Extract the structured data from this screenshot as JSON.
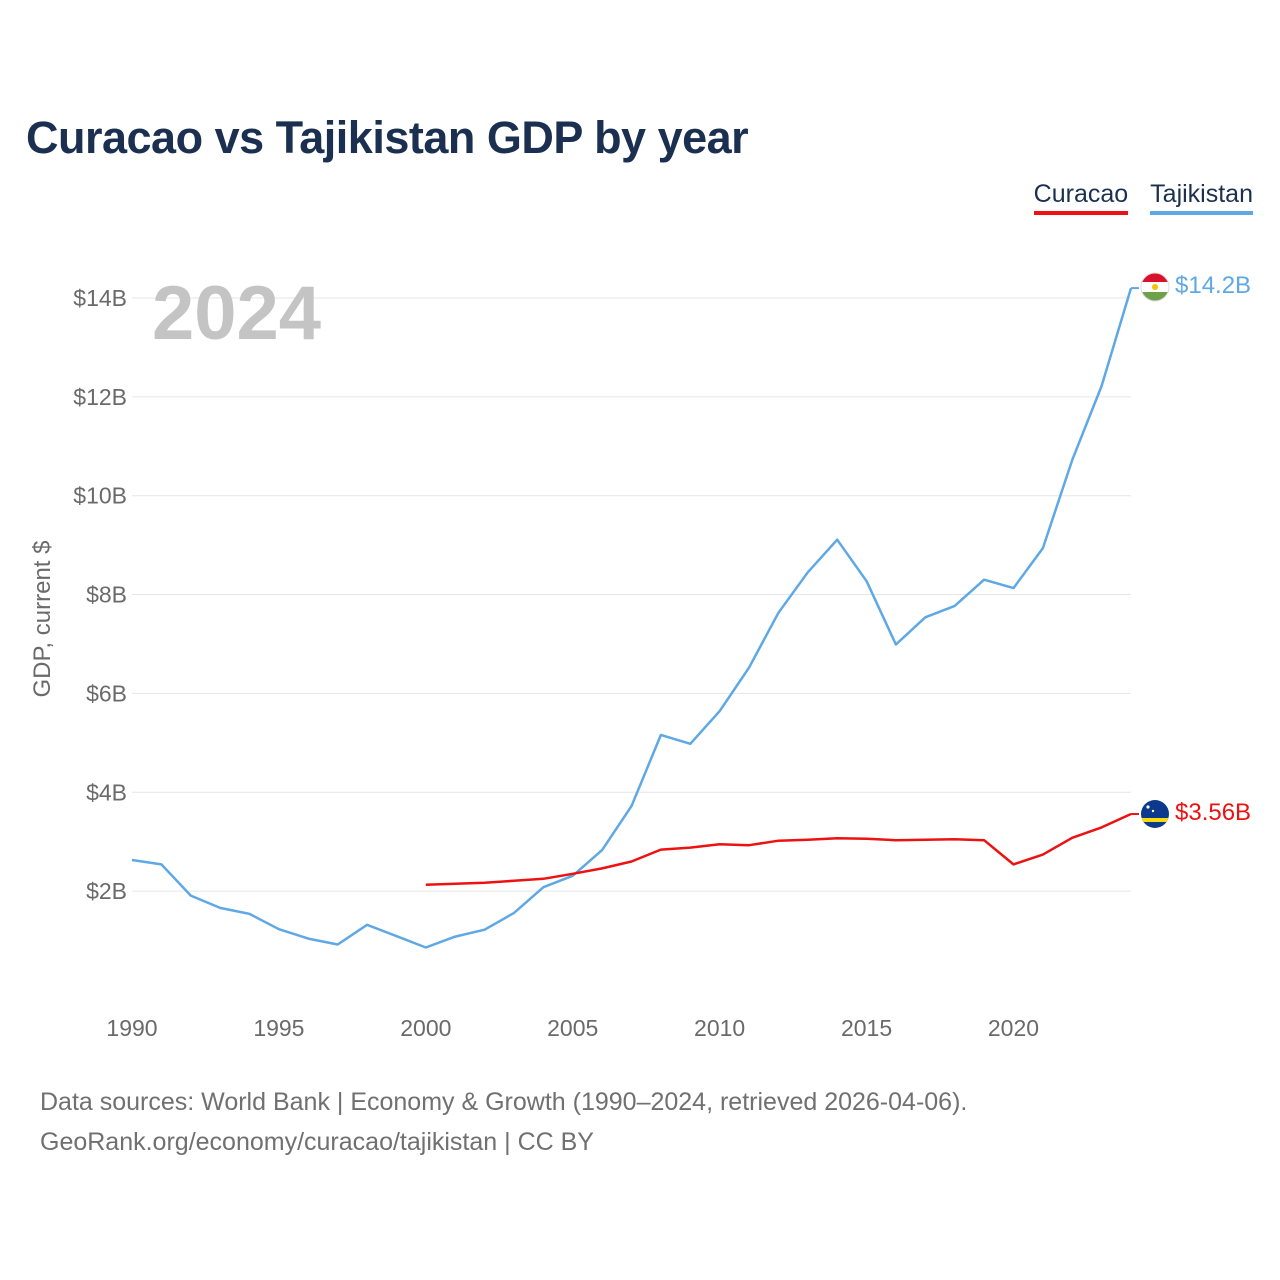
{
  "title": "Curacao vs Tajikistan GDP by year",
  "year_label": "2024",
  "footer": {
    "line1": "Data sources: World Bank | Economy & Growth (1990–2024, retrieved 2026-04-06).",
    "line2": "GeoRank.org/economy/curacao/tajikistan | CC BY"
  },
  "legend": [
    {
      "name": "Curacao",
      "color": "#ee1111"
    },
    {
      "name": "Tajikistan",
      "color": "#5fa8e6"
    }
  ],
  "chart_data": {
    "type": "line",
    "title": "Curacao vs Tajikistan GDP by year",
    "xlabel": "",
    "ylabel": "GDP, current $",
    "xlim": [
      1990,
      2024
    ],
    "ylim": [
      0,
      14.5
    ],
    "x_ticks": [
      1990,
      1995,
      2000,
      2005,
      2010,
      2015,
      2020
    ],
    "y_ticks": [
      2,
      4,
      6,
      8,
      10,
      12,
      14
    ],
    "y_tick_labels": [
      "$2B",
      "$4B",
      "$6B",
      "$8B",
      "$10B",
      "$12B",
      "$14B"
    ],
    "grid": true,
    "series": [
      {
        "name": "Tajikistan",
        "color": "#5fa8e6",
        "end_label": "$14.2B",
        "x": [
          1990,
          1991,
          1992,
          1993,
          1994,
          1995,
          1996,
          1997,
          1998,
          1999,
          2000,
          2001,
          2002,
          2003,
          2004,
          2005,
          2006,
          2007,
          2008,
          2009,
          2010,
          2011,
          2012,
          2013,
          2014,
          2015,
          2016,
          2017,
          2018,
          2019,
          2020,
          2021,
          2022,
          2023,
          2024
        ],
        "values": [
          2.63,
          2.54,
          1.91,
          1.66,
          1.54,
          1.23,
          1.04,
          0.92,
          1.32,
          1.09,
          0.86,
          1.08,
          1.22,
          1.56,
          2.08,
          2.31,
          2.83,
          3.72,
          5.16,
          4.98,
          5.64,
          6.52,
          7.63,
          8.45,
          9.11,
          8.27,
          6.99,
          7.54,
          7.77,
          8.3,
          8.13,
          8.94,
          10.72,
          12.22,
          14.2
        ]
      },
      {
        "name": "Curacao",
        "color": "#ee1111",
        "end_label": "$3.56B",
        "x": [
          2000,
          2001,
          2002,
          2003,
          2004,
          2005,
          2006,
          2007,
          2008,
          2009,
          2010,
          2011,
          2012,
          2013,
          2014,
          2015,
          2016,
          2017,
          2018,
          2019,
          2020,
          2021,
          2022,
          2023,
          2024
        ],
        "values": [
          2.13,
          2.15,
          2.17,
          2.21,
          2.25,
          2.35,
          2.46,
          2.6,
          2.84,
          2.88,
          2.95,
          2.93,
          3.02,
          3.04,
          3.07,
          3.06,
          3.03,
          3.04,
          3.05,
          3.03,
          2.54,
          2.74,
          3.08,
          3.29,
          3.56
        ]
      }
    ]
  }
}
